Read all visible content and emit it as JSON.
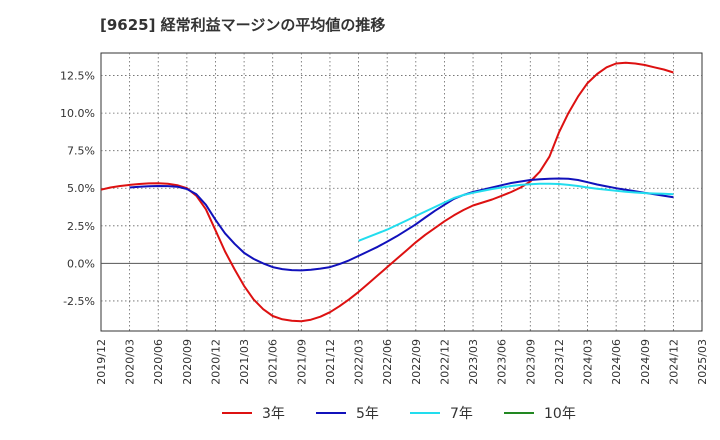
{
  "chart_data": {
    "type": "line",
    "title": "[9625]  経常利益マージンの平均値の推移",
    "xlabel": "",
    "ylabel": "",
    "ylim": [
      -4.5,
      14.0
    ],
    "y_ticks": [
      -2.5,
      0.0,
      2.5,
      5.0,
      7.5,
      10.0,
      12.5
    ],
    "y_tick_labels": [
      "-2.5%",
      "0.0%",
      "2.5%",
      "5.0%",
      "7.5%",
      "10.0%",
      "12.5%"
    ],
    "x_tick_labels": [
      "2019/12",
      "2020/03",
      "2020/06",
      "2020/09",
      "2020/12",
      "2021/03",
      "2021/06",
      "2021/09",
      "2021/12",
      "2022/03",
      "2022/06",
      "2022/09",
      "2022/12",
      "2023/03",
      "2023/06",
      "2023/09",
      "2023/12",
      "2024/03",
      "2024/06",
      "2024/09",
      "2024/12",
      "2025/03"
    ],
    "grid": true,
    "legend_position": "bottom",
    "series": [
      {
        "name": "3年",
        "color": "#dd1111",
        "points": [
          [
            "2019/12",
            4.9
          ],
          [
            "2020/01",
            5.05
          ],
          [
            "2020/02",
            5.15
          ],
          [
            "2020/03",
            5.22
          ],
          [
            "2020/04",
            5.28
          ],
          [
            "2020/05",
            5.32
          ],
          [
            "2020/06",
            5.33
          ],
          [
            "2020/07",
            5.3
          ],
          [
            "2020/08",
            5.2
          ],
          [
            "2020/09",
            5.0
          ],
          [
            "2020/10",
            4.5
          ],
          [
            "2020/11",
            3.6
          ],
          [
            "2020/12",
            2.2
          ],
          [
            "2021/01",
            0.8
          ],
          [
            "2021/02",
            -0.4
          ],
          [
            "2021/03",
            -1.5
          ],
          [
            "2021/04",
            -2.4
          ],
          [
            "2021/05",
            -3.05
          ],
          [
            "2021/06",
            -3.5
          ],
          [
            "2021/07",
            -3.72
          ],
          [
            "2021/08",
            -3.82
          ],
          [
            "2021/09",
            -3.85
          ],
          [
            "2021/10",
            -3.75
          ],
          [
            "2021/11",
            -3.55
          ],
          [
            "2021/12",
            -3.25
          ],
          [
            "2021/12",
            -3.25
          ],
          [
            "2022/01",
            -2.85
          ],
          [
            "2022/02",
            -2.4
          ],
          [
            "2022/03",
            -1.9
          ],
          [
            "2022/04",
            -1.35
          ],
          [
            "2022/05",
            -0.8
          ],
          [
            "2022/06",
            -0.25
          ],
          [
            "2022/07",
            0.3
          ],
          [
            "2022/08",
            0.85
          ],
          [
            "2022/09",
            1.4
          ],
          [
            "2022/10",
            1.9
          ],
          [
            "2022/11",
            2.35
          ],
          [
            "2022/12",
            2.8
          ],
          [
            "2023/01",
            3.2
          ],
          [
            "2023/02",
            3.55
          ],
          [
            "2023/03",
            3.85
          ],
          [
            "2023/04",
            4.05
          ],
          [
            "2023/05",
            4.25
          ],
          [
            "2023/06",
            4.5
          ],
          [
            "2023/07",
            4.75
          ],
          [
            "2023/08",
            5.05
          ],
          [
            "2023/09",
            5.45
          ],
          [
            "2023/10",
            6.1
          ],
          [
            "2023/11",
            7.1
          ],
          [
            "2023/12",
            8.7
          ],
          [
            "2024/01",
            10.0
          ],
          [
            "2024/02",
            11.1
          ],
          [
            "2024/03",
            12.0
          ],
          [
            "2024/04",
            12.6
          ],
          [
            "2024/05",
            13.05
          ],
          [
            "2024/06",
            13.3
          ],
          [
            "2024/07",
            13.35
          ],
          [
            "2024/08",
            13.3
          ],
          [
            "2024/09",
            13.2
          ],
          [
            "2024/10",
            13.05
          ],
          [
            "2024/11",
            12.9
          ],
          [
            "2024/12",
            12.7
          ]
        ]
      },
      {
        "name": "5年",
        "color": "#1111bb",
        "points": [
          [
            "2020/03",
            5.05
          ],
          [
            "2020/04",
            5.1
          ],
          [
            "2020/05",
            5.13
          ],
          [
            "2020/06",
            5.15
          ],
          [
            "2020/07",
            5.14
          ],
          [
            "2020/08",
            5.1
          ],
          [
            "2020/09",
            4.95
          ],
          [
            "2020/10",
            4.6
          ],
          [
            "2020/11",
            3.9
          ],
          [
            "2020/12",
            2.9
          ],
          [
            "2021/01",
            2.0
          ],
          [
            "2021/02",
            1.3
          ],
          [
            "2021/03",
            0.7
          ],
          [
            "2021/04",
            0.3
          ],
          [
            "2021/05",
            0.0
          ],
          [
            "2021/06",
            -0.25
          ],
          [
            "2021/07",
            -0.38
          ],
          [
            "2021/08",
            -0.45
          ],
          [
            "2021/09",
            -0.47
          ],
          [
            "2021/10",
            -0.43
          ],
          [
            "2021/11",
            -0.35
          ],
          [
            "2021/12",
            -0.25
          ],
          [
            "2022/01",
            -0.05
          ],
          [
            "2022/02",
            0.2
          ],
          [
            "2022/03",
            0.5
          ],
          [
            "2022/04",
            0.8
          ],
          [
            "2022/05",
            1.1
          ],
          [
            "2022/06",
            1.45
          ],
          [
            "2022/07",
            1.8
          ],
          [
            "2022/08",
            2.2
          ],
          [
            "2022/09",
            2.6
          ],
          [
            "2022/10",
            3.05
          ],
          [
            "2022/11",
            3.5
          ],
          [
            "2022/12",
            3.9
          ],
          [
            "2023/01",
            4.3
          ],
          [
            "2023/02",
            4.55
          ],
          [
            "2023/03",
            4.75
          ],
          [
            "2023/04",
            4.9
          ],
          [
            "2023/05",
            5.05
          ],
          [
            "2023/06",
            5.2
          ],
          [
            "2023/07",
            5.35
          ],
          [
            "2023/08",
            5.45
          ],
          [
            "2023/09",
            5.55
          ],
          [
            "2023/10",
            5.6
          ],
          [
            "2023/11",
            5.63
          ],
          [
            "2023/12",
            5.65
          ],
          [
            "2024/01",
            5.63
          ],
          [
            "2024/02",
            5.55
          ],
          [
            "2024/03",
            5.4
          ],
          [
            "2024/04",
            5.25
          ],
          [
            "2024/05",
            5.12
          ],
          [
            "2024/06",
            5.0
          ],
          [
            "2024/07",
            4.9
          ],
          [
            "2024/08",
            4.8
          ],
          [
            "2024/09",
            4.7
          ],
          [
            "2024/10",
            4.6
          ],
          [
            "2024/11",
            4.5
          ],
          [
            "2024/12",
            4.4
          ]
        ]
      },
      {
        "name": "7年",
        "color": "#22ddee",
        "points": [
          [
            "2022/03",
            1.5
          ],
          [
            "2022/04",
            1.75
          ],
          [
            "2022/05",
            2.0
          ],
          [
            "2022/06",
            2.25
          ],
          [
            "2022/07",
            2.55
          ],
          [
            "2022/08",
            2.85
          ],
          [
            "2022/09",
            3.15
          ],
          [
            "2022/10",
            3.45
          ],
          [
            "2022/11",
            3.75
          ],
          [
            "2022/12",
            4.05
          ],
          [
            "2023/01",
            4.35
          ],
          [
            "2023/02",
            4.55
          ],
          [
            "2023/03",
            4.7
          ],
          [
            "2023/04",
            4.82
          ],
          [
            "2023/05",
            4.95
          ],
          [
            "2023/06",
            5.05
          ],
          [
            "2023/07",
            5.15
          ],
          [
            "2023/08",
            5.22
          ],
          [
            "2023/09",
            5.27
          ],
          [
            "2023/10",
            5.3
          ],
          [
            "2023/11",
            5.3
          ],
          [
            "2023/12",
            5.28
          ],
          [
            "2024/01",
            5.22
          ],
          [
            "2024/02",
            5.15
          ],
          [
            "2024/03",
            5.05
          ],
          [
            "2024/04",
            4.97
          ],
          [
            "2024/05",
            4.9
          ],
          [
            "2024/06",
            4.83
          ],
          [
            "2024/07",
            4.77
          ],
          [
            "2024/08",
            4.72
          ],
          [
            "2024/09",
            4.68
          ],
          [
            "2024/10",
            4.65
          ],
          [
            "2024/11",
            4.63
          ],
          [
            "2024/12",
            4.6
          ]
        ]
      },
      {
        "name": "10年",
        "color": "#228822",
        "points": []
      }
    ]
  }
}
